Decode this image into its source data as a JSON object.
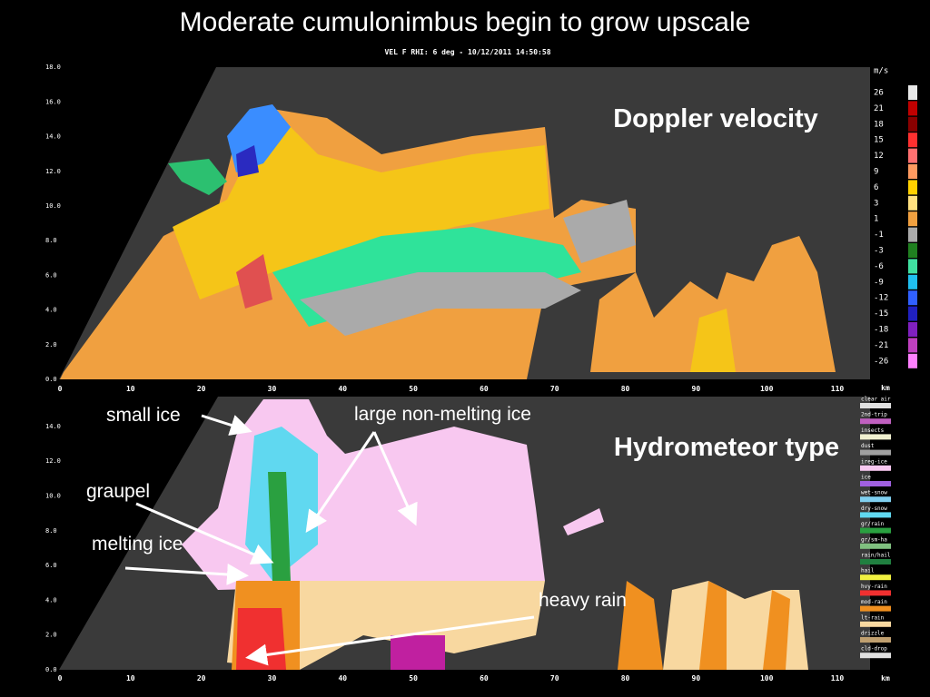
{
  "title": "Moderate cumulonimbus begin to grow upscale",
  "top_panel": {
    "subtitle": "VEL F  RHI: 6 deg  -  10/12/2011 14:50:58",
    "label": "Doppler velocity",
    "unit": "m/s",
    "x_unit": "km",
    "y_ticks": [
      "0.0",
      "2.0",
      "4.0",
      "6.0",
      "8.0",
      "10.0",
      "12.0",
      "14.0",
      "16.0",
      "18.0"
    ],
    "x_ticks": [
      0,
      10,
      20,
      30,
      40,
      50,
      60,
      70,
      80,
      90,
      100,
      110
    ],
    "colorbar": [
      "26",
      "21",
      "18",
      "15",
      "12",
      "9",
      "6",
      "3",
      "1",
      "-1",
      "-3",
      "-6",
      "-9",
      "-12",
      "-15",
      "-18",
      "-21",
      "-26"
    ]
  },
  "bottom_panel": {
    "label": "Hydrometeor type",
    "x_unit": "km",
    "y_ticks": [
      "0.0",
      "2.0",
      "4.0",
      "6.0",
      "8.0",
      "10.0",
      "12.0",
      "14.0"
    ],
    "x_ticks": [
      0,
      10,
      20,
      30,
      40,
      50,
      60,
      70,
      80,
      90,
      100,
      110
    ],
    "annotations": [
      "small ice",
      "large non-melting ice",
      "graupel",
      "melting ice",
      "heavy rain"
    ],
    "legend": [
      "clear air",
      "2nd-trip",
      "insects",
      "dust",
      "ireg-ice",
      "ice",
      "wet-snow",
      "dry-snow",
      "gr/rain",
      "gr/sm-ha",
      "rain/hail",
      "hail",
      "hvy-rain",
      "mod-rain",
      "lt-rain",
      "drizzle",
      "cld-drop"
    ]
  }
}
